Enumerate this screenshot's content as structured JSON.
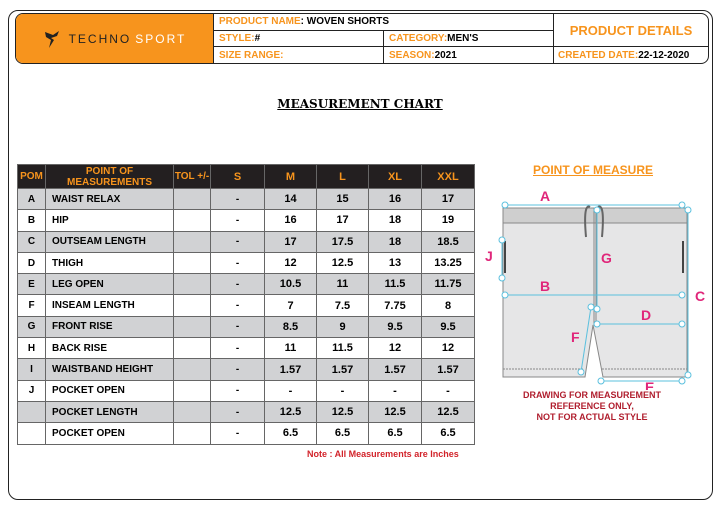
{
  "header": {
    "brand": "TECHNOSPORT",
    "brand_a": "TECHNO",
    "brand_b": "SPORT",
    "product_name_label": "PRODUCT NAME",
    "product_name": ": WOVEN SHORTS",
    "style_label": "STYLE:",
    "style": " #",
    "category_label": "CATEGORY:",
    "category": " MEN'S",
    "size_range_label": "SIZE RANGE:",
    "season_label": "SEASON:",
    "season": " 2021",
    "product_details": "PRODUCT DETAILS",
    "created_label": "CREATED DATE:",
    "created": " 22-12-2020"
  },
  "title": "MEASUREMENT CHART",
  "table": {
    "headers": [
      "POM",
      "POINT OF MEASUREMENTS",
      "TOL +/-",
      "S",
      "M",
      "L",
      "XL",
      "XXL"
    ],
    "rows": [
      [
        "A",
        "WAIST RELAX",
        "",
        "-",
        "14",
        "15",
        "16",
        "17"
      ],
      [
        "B",
        "HIP",
        "",
        "-",
        "16",
        "17",
        "18",
        "19"
      ],
      [
        "C",
        "OUTSEAM LENGTH",
        "",
        "-",
        "17",
        "17.5",
        "18",
        "18.5"
      ],
      [
        "D",
        "THIGH",
        "",
        "-",
        "12",
        "12.5",
        "13",
        "13.25"
      ],
      [
        "E",
        "LEG OPEN",
        "",
        "-",
        "10.5",
        "11",
        "11.5",
        "11.75"
      ],
      [
        "F",
        "INSEAM LENGTH",
        "",
        "-",
        "7",
        "7.5",
        "7.75",
        "8"
      ],
      [
        "G",
        "FRONT RISE",
        "",
        "-",
        "8.5",
        "9",
        "9.5",
        "9.5"
      ],
      [
        "H",
        "BACK RISE",
        "",
        "-",
        "11",
        "11.5",
        "12",
        "12"
      ],
      [
        "I",
        "WAISTBAND HEIGHT",
        "",
        "-",
        "1.57",
        "1.57",
        "1.57",
        "1.57"
      ],
      [
        "J",
        "POCKET OPEN",
        "",
        "-",
        "-",
        "-",
        "-",
        "-"
      ],
      [
        "",
        "POCKET LENGTH",
        "",
        "-",
        "12.5",
        "12.5",
        "12.5",
        "12.5"
      ],
      [
        "",
        "POCKET OPEN",
        "",
        "-",
        "6.5",
        "6.5",
        "6.5",
        "6.5"
      ]
    ]
  },
  "note": "Note : All Measurements are Inches",
  "pom": {
    "title": "POINT OF MEASURE",
    "labels": {
      "A": "A",
      "B": "B",
      "C": "C",
      "D": "D",
      "E": "E",
      "F": "F",
      "G": "G",
      "J": "J"
    },
    "disclaimer": [
      "DRAWING FOR MEASUREMENT",
      "REFERENCE ONLY,",
      "NOT FOR  ACTUAL STYLE"
    ]
  },
  "colors": {
    "accent": "#f7941d",
    "header_bg": "#231f20",
    "label_pink": "#e0267a",
    "guide": "#5bc0de",
    "note_red": "#d2232a"
  }
}
